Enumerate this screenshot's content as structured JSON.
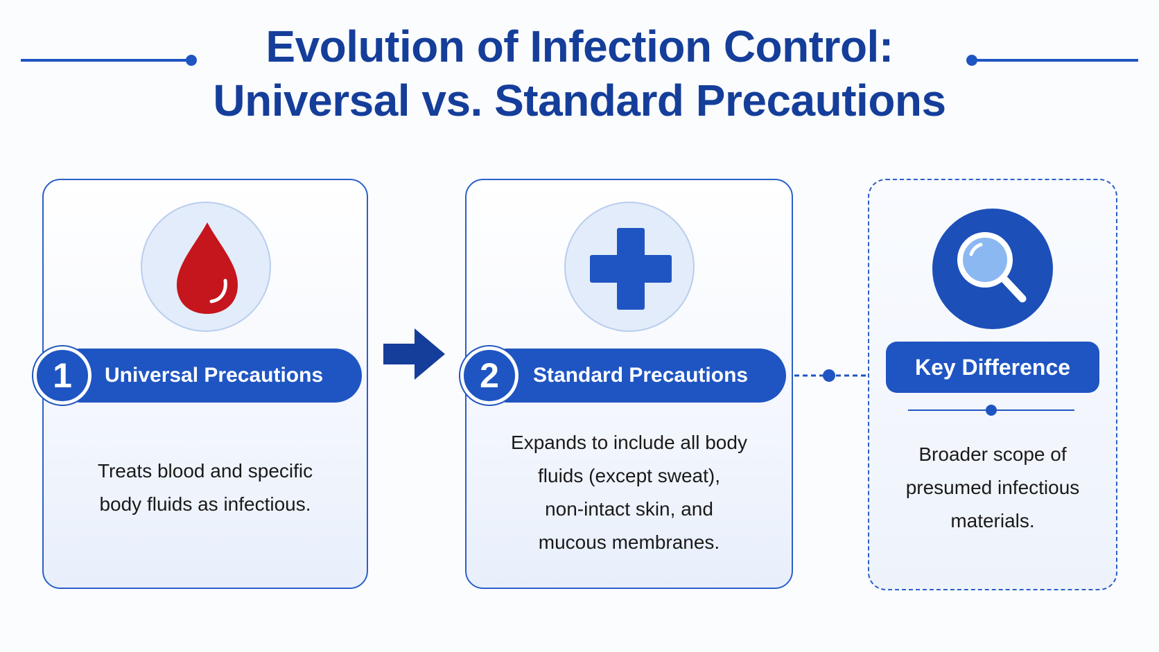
{
  "title": {
    "line1": "Evolution of Infection Control:",
    "line2": "Universal vs. Standard Precautions"
  },
  "colors": {
    "primary": "#1f55c2",
    "title": "#153e9a",
    "blood": "#c4161c",
    "icon_bg": "#e3ecfa"
  },
  "cards": [
    {
      "number": "1",
      "label": "Universal Precautions",
      "icon": "blood-drop-icon",
      "description": [
        "Treats blood and specific",
        "body fluids as infectious."
      ]
    },
    {
      "number": "2",
      "label": "Standard Precautions",
      "icon": "medical-cross-icon",
      "description": [
        "Expands to include all body",
        "fluids (except sweat),",
        "non-intact skin, and",
        "mucous membranes."
      ]
    }
  ],
  "key": {
    "label": "Key Difference",
    "icon": "magnifying-glass-icon",
    "description": [
      "Broader scope of",
      "presumed infectious",
      "materials."
    ]
  }
}
